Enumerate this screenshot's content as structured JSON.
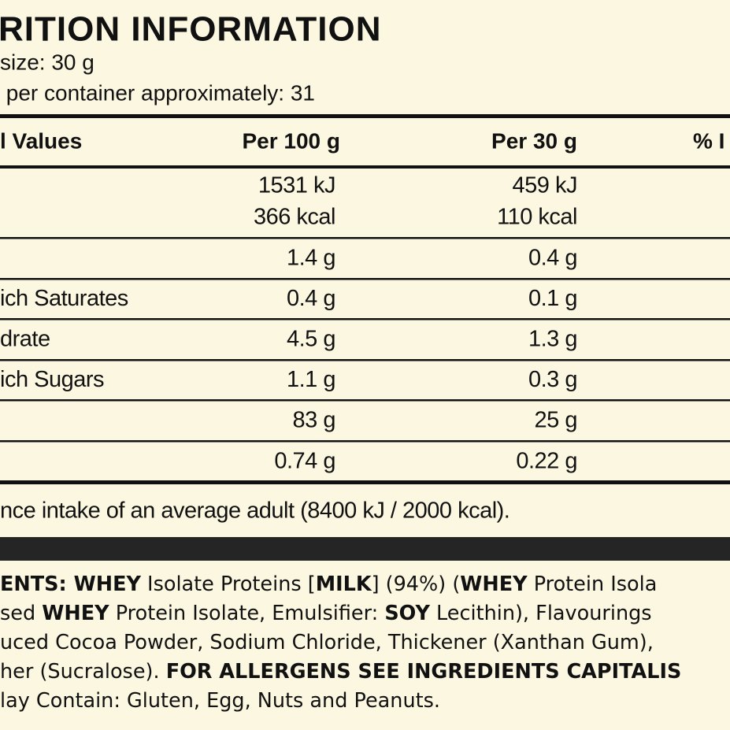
{
  "header": {
    "title": "RITION INFORMATION",
    "serving_size": "size: 30 g",
    "servings": " per container approximately: 31"
  },
  "table": {
    "columns": [
      "l Values",
      "Per 100 g",
      "Per 30 g",
      "% I"
    ],
    "rows": [
      {
        "per100": [
          "1531 kJ",
          "366 kcal"
        ],
        "per30": [
          "459 kJ",
          "110 kcal"
        ]
      },
      {
        "per100": [
          "1.4 g"
        ],
        "per30": [
          "0.4 g"
        ]
      },
      {
        "label": "ich Saturates",
        "per100": [
          "0.4 g"
        ],
        "per30": [
          "0.1 g"
        ]
      },
      {
        "label": "drate",
        "per100": [
          "4.5 g"
        ],
        "per30": [
          "1.3 g"
        ]
      },
      {
        "label": "ich Sugars",
        "per100": [
          "1.1 g"
        ],
        "per30": [
          "0.3 g"
        ]
      },
      {
        "per100": [
          "83 g"
        ],
        "per30": [
          "25 g"
        ]
      },
      {
        "per100": [
          "0.74 g"
        ],
        "per30": [
          "0.22 g"
        ]
      }
    ]
  },
  "footnote": "nce intake of an average adult (8400 kJ / 2000 kcal).",
  "ingredients": [
    [
      {
        "text": "ENTS: WHEY",
        "bold": true
      },
      {
        "text": " Isolate Proteins ["
      },
      {
        "text": "MILK",
        "bold": true
      },
      {
        "text": "] (94%) ("
      },
      {
        "text": "WHEY",
        "bold": true
      },
      {
        "text": " Protein Isola"
      }
    ],
    [
      {
        "text": "sed "
      },
      {
        "text": "WHEY",
        "bold": true
      },
      {
        "text": " Protein Isolate, Emulsifier: "
      },
      {
        "text": "SOY",
        "bold": true
      },
      {
        "text": " Lecithin), Flavourings"
      }
    ],
    [
      {
        "text": "uced Cocoa Powder, Sodium Chloride, Thickener (Xanthan Gum),"
      }
    ],
    [
      {
        "text": "her (Sucralose). "
      },
      {
        "text": "FOR ALLERGENS SEE INGREDIENTS CAPITALIS",
        "bold": true
      }
    ],
    [
      {
        "text": "lay Contain: Gluten, Egg, Nuts and Peanuts."
      }
    ]
  ]
}
